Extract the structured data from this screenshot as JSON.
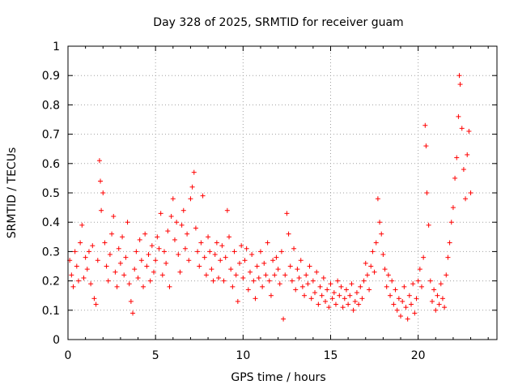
{
  "chart_data": {
    "type": "scatter",
    "title": "Day 328 of 2025, SRMTID for receiver guam",
    "xlabel": "GPS time / hours",
    "ylabel": "SRMTID / TECUs",
    "xlim": [
      0,
      24.5
    ],
    "ylim": [
      0,
      1
    ],
    "xticks": [
      0,
      5,
      10,
      15,
      20
    ],
    "xtick_labels": [
      "0",
      "5",
      "10",
      "15",
      "20"
    ],
    "yticks": [
      0,
      0.1,
      0.2,
      0.3,
      0.4,
      0.5,
      0.6,
      0.7,
      0.8,
      0.9,
      1
    ],
    "ytick_labels": [
      "0",
      "0.1",
      "0.2",
      "0.3",
      "0.4",
      "0.5",
      "0.6",
      "0.7",
      "0.8",
      "0.9",
      "1"
    ],
    "grid": true,
    "marker": "plus",
    "series": [
      {
        "name": "SRMTID",
        "color": "#ff0000",
        "points": [
          [
            0.1,
            0.27
          ],
          [
            0.2,
            0.22
          ],
          [
            0.3,
            0.18
          ],
          [
            0.4,
            0.3
          ],
          [
            0.5,
            0.25
          ],
          [
            0.6,
            0.2
          ],
          [
            0.7,
            0.33
          ],
          [
            0.8,
            0.39
          ],
          [
            0.9,
            0.21
          ],
          [
            1.0,
            0.28
          ],
          [
            1.1,
            0.24
          ],
          [
            1.2,
            0.3
          ],
          [
            1.3,
            0.19
          ],
          [
            1.4,
            0.32
          ],
          [
            1.5,
            0.14
          ],
          [
            1.6,
            0.12
          ],
          [
            1.7,
            0.27
          ],
          [
            1.8,
            0.61
          ],
          [
            1.85,
            0.54
          ],
          [
            1.9,
            0.44
          ],
          [
            2.0,
            0.5
          ],
          [
            2.1,
            0.33
          ],
          [
            2.2,
            0.25
          ],
          [
            2.3,
            0.2
          ],
          [
            2.4,
            0.29
          ],
          [
            2.5,
            0.36
          ],
          [
            2.6,
            0.42
          ],
          [
            2.7,
            0.23
          ],
          [
            2.8,
            0.18
          ],
          [
            2.9,
            0.31
          ],
          [
            3.0,
            0.26
          ],
          [
            3.1,
            0.35
          ],
          [
            3.2,
            0.22
          ],
          [
            3.3,
            0.28
          ],
          [
            3.4,
            0.4
          ],
          [
            3.5,
            0.19
          ],
          [
            3.6,
            0.13
          ],
          [
            3.7,
            0.09
          ],
          [
            3.8,
            0.24
          ],
          [
            3.9,
            0.3
          ],
          [
            4.0,
            0.21
          ],
          [
            4.1,
            0.34
          ],
          [
            4.2,
            0.27
          ],
          [
            4.3,
            0.18
          ],
          [
            4.4,
            0.36
          ],
          [
            4.5,
            0.25
          ],
          [
            4.6,
            0.29
          ],
          [
            4.7,
            0.2
          ],
          [
            4.8,
            0.32
          ],
          [
            4.9,
            0.23
          ],
          [
            5.0,
            0.27
          ],
          [
            5.1,
            0.35
          ],
          [
            5.2,
            0.31
          ],
          [
            5.3,
            0.43
          ],
          [
            5.4,
            0.22
          ],
          [
            5.5,
            0.3
          ],
          [
            5.6,
            0.26
          ],
          [
            5.7,
            0.37
          ],
          [
            5.8,
            0.18
          ],
          [
            5.9,
            0.42
          ],
          [
            6.0,
            0.48
          ],
          [
            6.1,
            0.34
          ],
          [
            6.2,
            0.4
          ],
          [
            6.3,
            0.29
          ],
          [
            6.4,
            0.23
          ],
          [
            6.5,
            0.39
          ],
          [
            6.6,
            0.44
          ],
          [
            6.7,
            0.31
          ],
          [
            6.8,
            0.36
          ],
          [
            6.9,
            0.27
          ],
          [
            7.0,
            0.48
          ],
          [
            7.1,
            0.52
          ],
          [
            7.2,
            0.57
          ],
          [
            7.3,
            0.38
          ],
          [
            7.4,
            0.3
          ],
          [
            7.5,
            0.25
          ],
          [
            7.6,
            0.33
          ],
          [
            7.7,
            0.49
          ],
          [
            7.8,
            0.28
          ],
          [
            7.9,
            0.22
          ],
          [
            8.0,
            0.35
          ],
          [
            8.1,
            0.3
          ],
          [
            8.2,
            0.24
          ],
          [
            8.3,
            0.2
          ],
          [
            8.4,
            0.29
          ],
          [
            8.5,
            0.33
          ],
          [
            8.6,
            0.21
          ],
          [
            8.7,
            0.27
          ],
          [
            8.8,
            0.32
          ],
          [
            8.9,
            0.2
          ],
          [
            9.0,
            0.28
          ],
          [
            9.1,
            0.44
          ],
          [
            9.2,
            0.35
          ],
          [
            9.3,
            0.24
          ],
          [
            9.4,
            0.18
          ],
          [
            9.5,
            0.3
          ],
          [
            9.6,
            0.22
          ],
          [
            9.7,
            0.13
          ],
          [
            9.8,
            0.26
          ],
          [
            9.9,
            0.32
          ],
          [
            10.0,
            0.21
          ],
          [
            10.1,
            0.27
          ],
          [
            10.2,
            0.31
          ],
          [
            10.3,
            0.17
          ],
          [
            10.4,
            0.23
          ],
          [
            10.5,
            0.29
          ],
          [
            10.6,
            0.2
          ],
          [
            10.7,
            0.14
          ],
          [
            10.8,
            0.25
          ],
          [
            10.9,
            0.21
          ],
          [
            11.0,
            0.3
          ],
          [
            11.1,
            0.18
          ],
          [
            11.2,
            0.26
          ],
          [
            11.3,
            0.22
          ],
          [
            11.4,
            0.33
          ],
          [
            11.5,
            0.2
          ],
          [
            11.6,
            0.15
          ],
          [
            11.7,
            0.27
          ],
          [
            11.8,
            0.22
          ],
          [
            11.9,
            0.28
          ],
          [
            12.0,
            0.24
          ],
          [
            12.1,
            0.19
          ],
          [
            12.2,
            0.3
          ],
          [
            12.3,
            0.07
          ],
          [
            12.4,
            0.22
          ],
          [
            12.5,
            0.43
          ],
          [
            12.6,
            0.36
          ],
          [
            12.7,
            0.25
          ],
          [
            12.8,
            0.2
          ],
          [
            12.9,
            0.31
          ],
          [
            13.0,
            0.17
          ],
          [
            13.1,
            0.24
          ],
          [
            13.2,
            0.21
          ],
          [
            13.3,
            0.27
          ],
          [
            13.4,
            0.18
          ],
          [
            13.5,
            0.15
          ],
          [
            13.6,
            0.22
          ],
          [
            13.7,
            0.19
          ],
          [
            13.8,
            0.25
          ],
          [
            13.9,
            0.14
          ],
          [
            14.0,
            0.2
          ],
          [
            14.1,
            0.16
          ],
          [
            14.2,
            0.23
          ],
          [
            14.3,
            0.12
          ],
          [
            14.4,
            0.18
          ],
          [
            14.5,
            0.15
          ],
          [
            14.6,
            0.21
          ],
          [
            14.7,
            0.13
          ],
          [
            14.8,
            0.17
          ],
          [
            14.9,
            0.11
          ],
          [
            15.0,
            0.19
          ],
          [
            15.1,
            0.14
          ],
          [
            15.2,
            0.16
          ],
          [
            15.3,
            0.12
          ],
          [
            15.4,
            0.2
          ],
          [
            15.5,
            0.15
          ],
          [
            15.6,
            0.18
          ],
          [
            15.7,
            0.11
          ],
          [
            15.8,
            0.14
          ],
          [
            15.9,
            0.17
          ],
          [
            16.0,
            0.12
          ],
          [
            16.1,
            0.15
          ],
          [
            16.2,
            0.19
          ],
          [
            16.3,
            0.1
          ],
          [
            16.4,
            0.13
          ],
          [
            16.5,
            0.16
          ],
          [
            16.6,
            0.12
          ],
          [
            16.7,
            0.18
          ],
          [
            16.8,
            0.14
          ],
          [
            16.9,
            0.2
          ],
          [
            17.0,
            0.26
          ],
          [
            17.1,
            0.22
          ],
          [
            17.2,
            0.17
          ],
          [
            17.3,
            0.25
          ],
          [
            17.4,
            0.3
          ],
          [
            17.5,
            0.23
          ],
          [
            17.6,
            0.33
          ],
          [
            17.7,
            0.48
          ],
          [
            17.8,
            0.4
          ],
          [
            17.9,
            0.36
          ],
          [
            18.0,
            0.29
          ],
          [
            18.1,
            0.24
          ],
          [
            18.2,
            0.18
          ],
          [
            18.3,
            0.22
          ],
          [
            18.4,
            0.15
          ],
          [
            18.5,
            0.2
          ],
          [
            18.6,
            0.12
          ],
          [
            18.7,
            0.17
          ],
          [
            18.8,
            0.1
          ],
          [
            18.9,
            0.14
          ],
          [
            19.0,
            0.08
          ],
          [
            19.1,
            0.13
          ],
          [
            19.2,
            0.18
          ],
          [
            19.3,
            0.11
          ],
          [
            19.4,
            0.07
          ],
          [
            19.5,
            0.15
          ],
          [
            19.6,
            0.12
          ],
          [
            19.7,
            0.19
          ],
          [
            19.8,
            0.09
          ],
          [
            19.9,
            0.14
          ],
          [
            20.0,
            0.2
          ],
          [
            20.1,
            0.24
          ],
          [
            20.2,
            0.18
          ],
          [
            20.3,
            0.28
          ],
          [
            20.4,
            0.73
          ],
          [
            20.45,
            0.66
          ],
          [
            20.5,
            0.5
          ],
          [
            20.6,
            0.39
          ],
          [
            20.7,
            0.2
          ],
          [
            20.8,
            0.13
          ],
          [
            20.9,
            0.17
          ],
          [
            21.0,
            0.1
          ],
          [
            21.1,
            0.15
          ],
          [
            21.2,
            0.12
          ],
          [
            21.3,
            0.19
          ],
          [
            21.4,
            0.14
          ],
          [
            21.5,
            0.11
          ],
          [
            21.6,
            0.22
          ],
          [
            21.7,
            0.28
          ],
          [
            21.8,
            0.33
          ],
          [
            21.9,
            0.4
          ],
          [
            22.0,
            0.45
          ],
          [
            22.1,
            0.55
          ],
          [
            22.2,
            0.62
          ],
          [
            22.3,
            0.76
          ],
          [
            22.35,
            0.9
          ],
          [
            22.4,
            0.87
          ],
          [
            22.5,
            0.72
          ],
          [
            22.6,
            0.58
          ],
          [
            22.7,
            0.48
          ],
          [
            22.8,
            0.63
          ],
          [
            22.9,
            0.71
          ],
          [
            23.0,
            0.5
          ]
        ]
      }
    ]
  }
}
